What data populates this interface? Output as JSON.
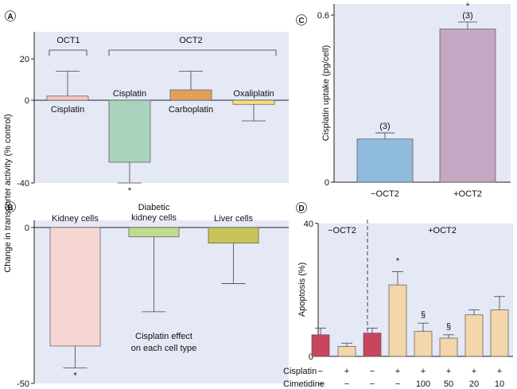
{
  "shared": {
    "y_axis_title": "Change in transporter activity (% control)"
  },
  "chart_data": [
    {
      "id": "A",
      "panel_label": "A",
      "type": "bar",
      "ylim": [
        -40,
        33
      ],
      "yticks": [
        "20",
        "0",
        "-40"
      ],
      "ytick_values": [
        20,
        0,
        -40
      ],
      "groups": [
        {
          "label": "OCT1"
        },
        {
          "label": "OCT2"
        }
      ],
      "categories": [
        "Cisplatin",
        "Cisplatin",
        "Carboplatin",
        "Oxaliplatin"
      ],
      "values": [
        2,
        -30,
        5,
        -2
      ],
      "errors": [
        12,
        10,
        9,
        8
      ],
      "colors": [
        "#f4c7c3",
        "#a8d3bd",
        "#e0a15c",
        "#f7df7f"
      ],
      "significance": [
        "",
        "*",
        "",
        ""
      ]
    },
    {
      "id": "B",
      "panel_label": "B",
      "type": "bar",
      "ylim": [
        -50,
        0
      ],
      "yticks": [
        "0",
        "-50"
      ],
      "ytick_values": [
        0,
        -50
      ],
      "categories": [
        "Kidney cells",
        "Diabetic\nkidney cells",
        "Liver cells"
      ],
      "values": [
        -38,
        -3,
        -5
      ],
      "errors": [
        7,
        24,
        13
      ],
      "colors": [
        "#f6d6d3",
        "#bfdc8f",
        "#c9c459"
      ],
      "significance": [
        "*",
        "",
        ""
      ],
      "annotation": "Cisplatin effect\non each cell type"
    },
    {
      "id": "C",
      "panel_label": "C",
      "type": "bar",
      "ylabel": "Cisplatin uptake (pg/cell)",
      "ylim": [
        0,
        0.65
      ],
      "yticks": [
        "0.6",
        "0"
      ],
      "ytick_values": [
        0.6,
        0
      ],
      "categories": [
        "−OCT2",
        "+OCT2"
      ],
      "values": [
        0.155,
        0.55
      ],
      "errors": [
        0.022,
        0.025
      ],
      "n_labels": [
        "(3)",
        "(3)"
      ],
      "colors": [
        "#8fbbdc",
        "#c4a7c2"
      ],
      "significance": [
        "",
        "*"
      ]
    },
    {
      "id": "D",
      "panel_label": "D",
      "type": "bar",
      "ylabel": "Apoptosis (%)",
      "ylim": [
        0,
        40
      ],
      "yticks": [
        "40",
        "0"
      ],
      "ytick_values": [
        40,
        0
      ],
      "section_labels": [
        "−OCT2",
        "+OCT2"
      ],
      "row_labels": [
        "Cisplatin",
        "Cimetidine"
      ],
      "cisplatin": [
        "−",
        "+",
        "−",
        "+",
        "+",
        "+",
        "+",
        "+"
      ],
      "cimetidine": [
        "−",
        "−",
        "−",
        "−",
        "100",
        "50",
        "20",
        "10"
      ],
      "values": [
        6.5,
        3,
        7,
        21.5,
        7.5,
        5.5,
        12.5,
        14
      ],
      "errors": [
        2,
        1,
        1.5,
        4,
        2.5,
        1,
        1.5,
        4
      ],
      "colors": [
        "#c9455c",
        "#f3d6a9",
        "#c9455c",
        "#f3d6a9",
        "#f3d6a9",
        "#f3d6a9",
        "#f3d6a9",
        "#f3d6a9"
      ],
      "significance": [
        "",
        "",
        "",
        "*",
        "§",
        "§",
        "",
        ""
      ]
    }
  ]
}
